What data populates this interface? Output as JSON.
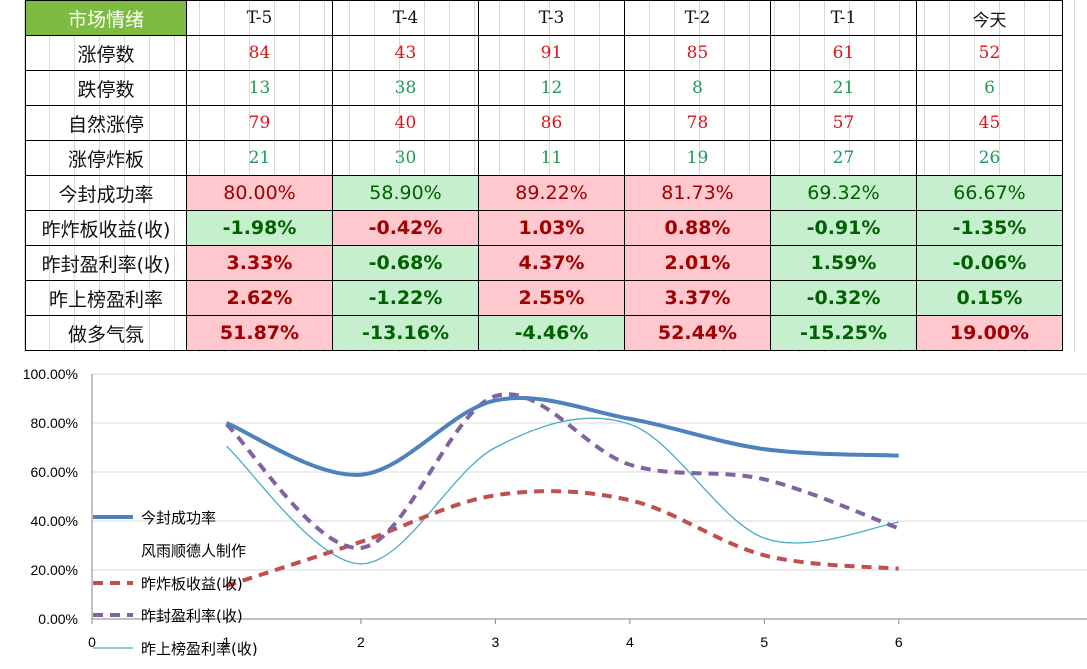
{
  "table": {
    "corner_label": "市场情绪",
    "headers": [
      "T-5",
      "T-4",
      "T-3",
      "T-2",
      "T-1",
      "今天"
    ],
    "rows": [
      {
        "label": "涨停数",
        "type": "num",
        "color": "red",
        "values": [
          "84",
          "43",
          "91",
          "85",
          "61",
          "52"
        ]
      },
      {
        "label": "跌停数",
        "type": "num",
        "color": "green",
        "values": [
          "13",
          "38",
          "12",
          "8",
          "21",
          "6"
        ]
      },
      {
        "label": "自然涨停",
        "type": "num",
        "color": "red",
        "values": [
          "79",
          "40",
          "86",
          "78",
          "57",
          "45"
        ]
      },
      {
        "label": "涨停炸板",
        "type": "num",
        "color": "green",
        "values": [
          "21",
          "30",
          "11",
          "19",
          "27",
          "26"
        ]
      },
      {
        "label": "今封成功率",
        "type": "pct",
        "bold": false,
        "values": [
          "80.00%",
          "58.90%",
          "89.22%",
          "81.73%",
          "69.32%",
          "66.67%"
        ],
        "bg": [
          "red",
          "green",
          "red",
          "red",
          "green",
          "green"
        ]
      },
      {
        "label": "昨炸板收益(收)",
        "type": "pct",
        "bold": true,
        "values": [
          "-1.98%",
          "-0.42%",
          "1.03%",
          "0.88%",
          "-0.91%",
          "-1.35%"
        ],
        "bg": [
          "green",
          "red",
          "red",
          "red",
          "green",
          "green"
        ]
      },
      {
        "label": "昨封盈利率(收)",
        "type": "pct",
        "bold": true,
        "values": [
          "3.33%",
          "-0.68%",
          "4.37%",
          "2.01%",
          "1.59%",
          "-0.06%"
        ],
        "bg": [
          "red",
          "green",
          "red",
          "red",
          "green",
          "green"
        ]
      },
      {
        "label": "昨上榜盈利率",
        "type": "pct",
        "bold": true,
        "values": [
          "2.62%",
          "-1.22%",
          "2.55%",
          "3.37%",
          "-0.32%",
          "0.15%"
        ],
        "bg": [
          "red",
          "green",
          "red",
          "red",
          "green",
          "green"
        ]
      },
      {
        "label": "做多气氛",
        "type": "pct",
        "bold": true,
        "values": [
          "51.87%",
          "-13.16%",
          "-4.46%",
          "52.44%",
          "-15.25%",
          "19.00%"
        ],
        "bg": [
          "red",
          "green",
          "green",
          "red",
          "green",
          "red"
        ]
      }
    ]
  },
  "chart_data": {
    "type": "line",
    "title": "",
    "xlabel": "",
    "ylabel": "",
    "x_ticks": [
      "0",
      "1",
      "2",
      "3",
      "4",
      "5",
      "6"
    ],
    "y_ticks": [
      "0.00%",
      "20.00%",
      "40.00%",
      "60.00%",
      "80.00%",
      "100.00%"
    ],
    "xlim": [
      0,
      7.4
    ],
    "ylim": [
      0,
      100
    ],
    "grid": "horizontal",
    "legend_position": "left",
    "x": [
      1,
      2,
      3,
      4,
      5,
      6
    ],
    "series": [
      {
        "name": "今封成功率",
        "values": [
          80.0,
          58.9,
          89.22,
          81.73,
          69.32,
          66.67
        ],
        "color": "#4f81bd",
        "style": "solid-thick"
      },
      {
        "name": "昨炸板收益(收)",
        "values": [
          13.5,
          31.5,
          50.5,
          48.5,
          26.0,
          20.5
        ],
        "color": "#c0504d",
        "style": "dashed"
      },
      {
        "name": "昨封盈利率(收)",
        "values": [
          79.5,
          29.0,
          91.0,
          63.0,
          57.0,
          37.0
        ],
        "color": "#8064a2",
        "style": "dashed"
      },
      {
        "name": "昨上榜盈利率(收)",
        "values": [
          70.5,
          22.5,
          70.0,
          79.5,
          33.0,
          39.5
        ],
        "color": "#4bacc6",
        "style": "thin"
      }
    ],
    "watermark": "风雨顺德人制作"
  }
}
